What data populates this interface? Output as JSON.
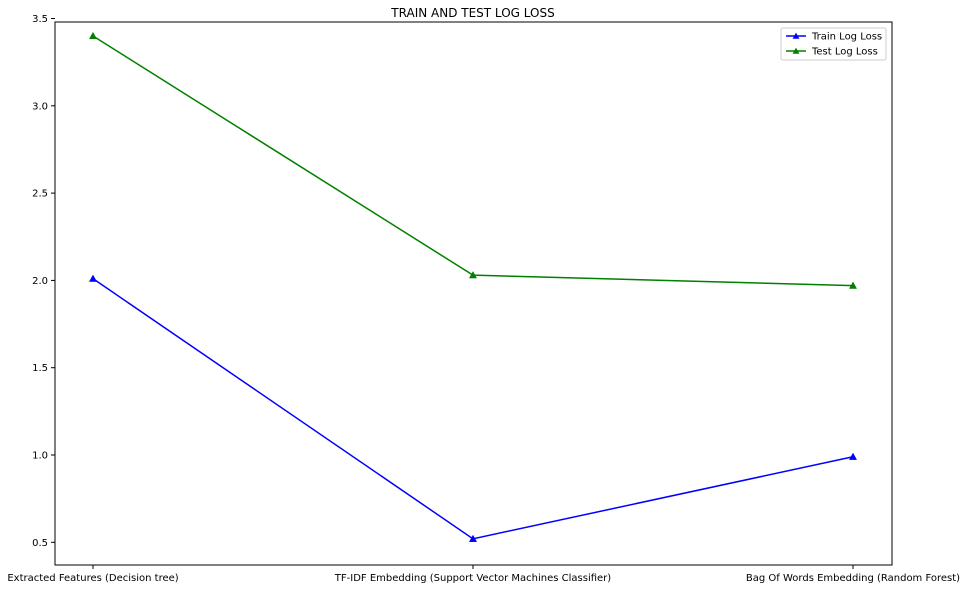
{
  "chart_data": {
    "type": "line",
    "title": "TRAIN AND TEST LOG LOSS",
    "xlabel": "",
    "ylabel": "",
    "categories": [
      "Extracted Features (Decision tree)",
      "TF-IDF Embedding (Support Vector Machines Classifier)",
      "Bag Of Words Embedding (Random Forest)"
    ],
    "series": [
      {
        "name": "Train Log Loss",
        "color": "#0000ff",
        "marker": "triangle-up",
        "values": [
          2.01,
          0.52,
          0.99
        ]
      },
      {
        "name": "Test Log Loss",
        "color": "#008000",
        "marker": "triangle-up",
        "values": [
          3.4,
          2.03,
          1.97
        ]
      }
    ],
    "ylim": [
      0.37,
      3.48
    ],
    "yticks": [
      0.5,
      1.0,
      1.5,
      2.0,
      2.5,
      3.0,
      3.5
    ],
    "ytick_labels": [
      "0.5",
      "1.0",
      "1.5",
      "2.0",
      "2.5",
      "3.0",
      "3.5"
    ],
    "grid": false,
    "legend": "top-right"
  }
}
